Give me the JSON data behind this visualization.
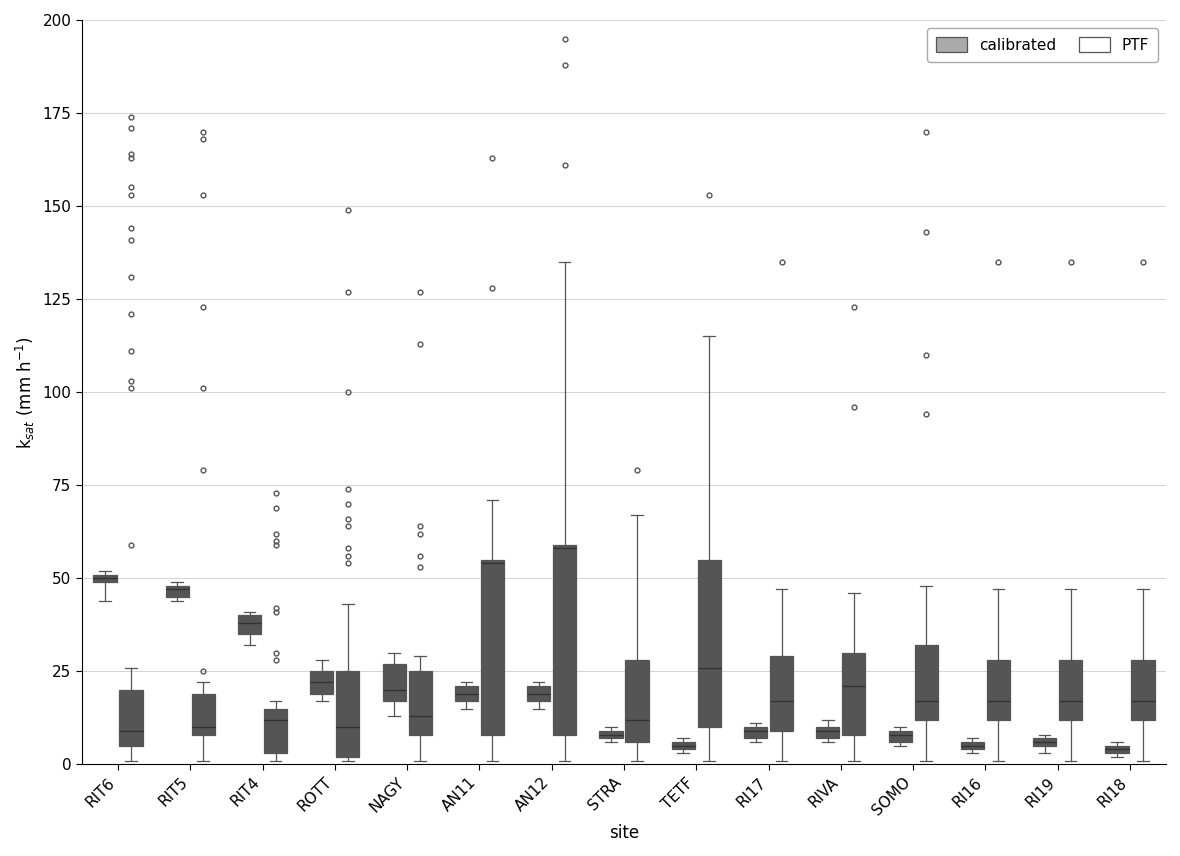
{
  "sites": [
    "RIT6",
    "RIT5",
    "RIT4",
    "ROTT",
    "NAGY",
    "AN11",
    "AN12",
    "STRA",
    "TETF",
    "RI17",
    "RIVA",
    "SOMO",
    "RI16",
    "RI19",
    "RI18"
  ],
  "calibrated": {
    "RIT6": {
      "whislo": 44,
      "q1": 49,
      "med": 50,
      "q3": 51,
      "whishi": 52,
      "fliers": []
    },
    "RIT5": {
      "whislo": 44,
      "q1": 45,
      "med": 47,
      "q3": 48,
      "whishi": 49,
      "fliers": []
    },
    "RIT4": {
      "whislo": 32,
      "q1": 35,
      "med": 38,
      "q3": 40,
      "whishi": 41,
      "fliers": []
    },
    "ROTT": {
      "whislo": 17,
      "q1": 19,
      "med": 22,
      "q3": 25,
      "whishi": 28,
      "fliers": []
    },
    "NAGY": {
      "whislo": 13,
      "q1": 17,
      "med": 20,
      "q3": 27,
      "whishi": 30,
      "fliers": []
    },
    "AN11": {
      "whislo": 15,
      "q1": 17,
      "med": 19,
      "q3": 21,
      "whishi": 22,
      "fliers": []
    },
    "AN12": {
      "whislo": 15,
      "q1": 17,
      "med": 19,
      "q3": 21,
      "whishi": 22,
      "fliers": []
    },
    "STRA": {
      "whislo": 6,
      "q1": 7,
      "med": 8,
      "q3": 9,
      "whishi": 10,
      "fliers": []
    },
    "TETF": {
      "whislo": 3,
      "q1": 4,
      "med": 5,
      "q3": 6,
      "whishi": 7,
      "fliers": []
    },
    "RI17": {
      "whislo": 6,
      "q1": 7,
      "med": 9,
      "q3": 10,
      "whishi": 11,
      "fliers": []
    },
    "RIVA": {
      "whislo": 6,
      "q1": 7,
      "med": 9,
      "q3": 10,
      "whishi": 12,
      "fliers": []
    },
    "SOMO": {
      "whislo": 5,
      "q1": 6,
      "med": 8,
      "q3": 9,
      "whishi": 10,
      "fliers": []
    },
    "RI16": {
      "whislo": 3,
      "q1": 4,
      "med": 5,
      "q3": 6,
      "whishi": 7,
      "fliers": []
    },
    "RI19": {
      "whislo": 3,
      "q1": 5,
      "med": 6,
      "q3": 7,
      "whishi": 8,
      "fliers": []
    },
    "RI18": {
      "whislo": 2,
      "q1": 3,
      "med": 4,
      "q3": 5,
      "whishi": 6,
      "fliers": []
    }
  },
  "ptf": {
    "RIT6": {
      "whislo": 1,
      "q1": 5,
      "med": 9,
      "q3": 20,
      "whishi": 26,
      "fliers": [
        59,
        101,
        103,
        111,
        121,
        131,
        141,
        144,
        153,
        155,
        163,
        164,
        171,
        174
      ]
    },
    "RIT5": {
      "whislo": 1,
      "q1": 8,
      "med": 10,
      "q3": 19,
      "whishi": 22,
      "fliers": [
        25,
        79,
        101,
        123,
        153,
        168,
        170
      ]
    },
    "RIT4": {
      "whislo": 1,
      "q1": 3,
      "med": 12,
      "q3": 15,
      "whishi": 17,
      "fliers": [
        28,
        30,
        41,
        42,
        59,
        60,
        62,
        69,
        73
      ]
    },
    "ROTT": {
      "whislo": 1,
      "q1": 2,
      "med": 10,
      "q3": 25,
      "whishi": 43,
      "fliers": [
        54,
        56,
        58,
        64,
        66,
        70,
        74,
        100,
        127,
        149
      ]
    },
    "NAGY": {
      "whislo": 1,
      "q1": 8,
      "med": 13,
      "q3": 25,
      "whishi": 29,
      "fliers": [
        53,
        56,
        62,
        64,
        113,
        127
      ]
    },
    "AN11": {
      "whislo": 1,
      "q1": 8,
      "med": 54,
      "q3": 55,
      "whishi": 71,
      "fliers": [
        128,
        163
      ]
    },
    "AN12": {
      "whislo": 1,
      "q1": 8,
      "med": 58,
      "q3": 59,
      "whishi": 135,
      "fliers": [
        161,
        188,
        195
      ]
    },
    "STRA": {
      "whislo": 1,
      "q1": 6,
      "med": 12,
      "q3": 28,
      "whishi": 67,
      "fliers": [
        79
      ]
    },
    "TETF": {
      "whislo": 1,
      "q1": 10,
      "med": 26,
      "q3": 55,
      "whishi": 115,
      "fliers": [
        153
      ]
    },
    "RI17": {
      "whislo": 1,
      "q1": 9,
      "med": 17,
      "q3": 29,
      "whishi": 47,
      "fliers": [
        135
      ]
    },
    "RIVA": {
      "whislo": 1,
      "q1": 8,
      "med": 21,
      "q3": 30,
      "whishi": 46,
      "fliers": [
        96,
        123
      ]
    },
    "SOMO": {
      "whislo": 1,
      "q1": 12,
      "med": 17,
      "q3": 32,
      "whishi": 48,
      "fliers": [
        94,
        110,
        143,
        170
      ]
    },
    "RI16": {
      "whislo": 1,
      "q1": 12,
      "med": 17,
      "q3": 28,
      "whishi": 47,
      "fliers": [
        135
      ]
    },
    "RI19": {
      "whislo": 1,
      "q1": 12,
      "med": 17,
      "q3": 28,
      "whishi": 47,
      "fliers": [
        135
      ]
    },
    "RI18": {
      "whislo": 1,
      "q1": 12,
      "med": 17,
      "q3": 28,
      "whishi": 47,
      "fliers": [
        135
      ]
    }
  },
  "ylabel": "k$_{sat}$ (mm h$^{-1}$)",
  "xlabel": "site",
  "ylim": [
    0,
    200
  ],
  "yticks": [
    0,
    25,
    50,
    75,
    100,
    125,
    150,
    175,
    200
  ],
  "background_color": "#ffffff",
  "calibrated_color": "#aaaaaa",
  "ptf_color": "#ffffff",
  "box_width": 0.32,
  "legend_labels": [
    "calibrated",
    "PTF"
  ]
}
